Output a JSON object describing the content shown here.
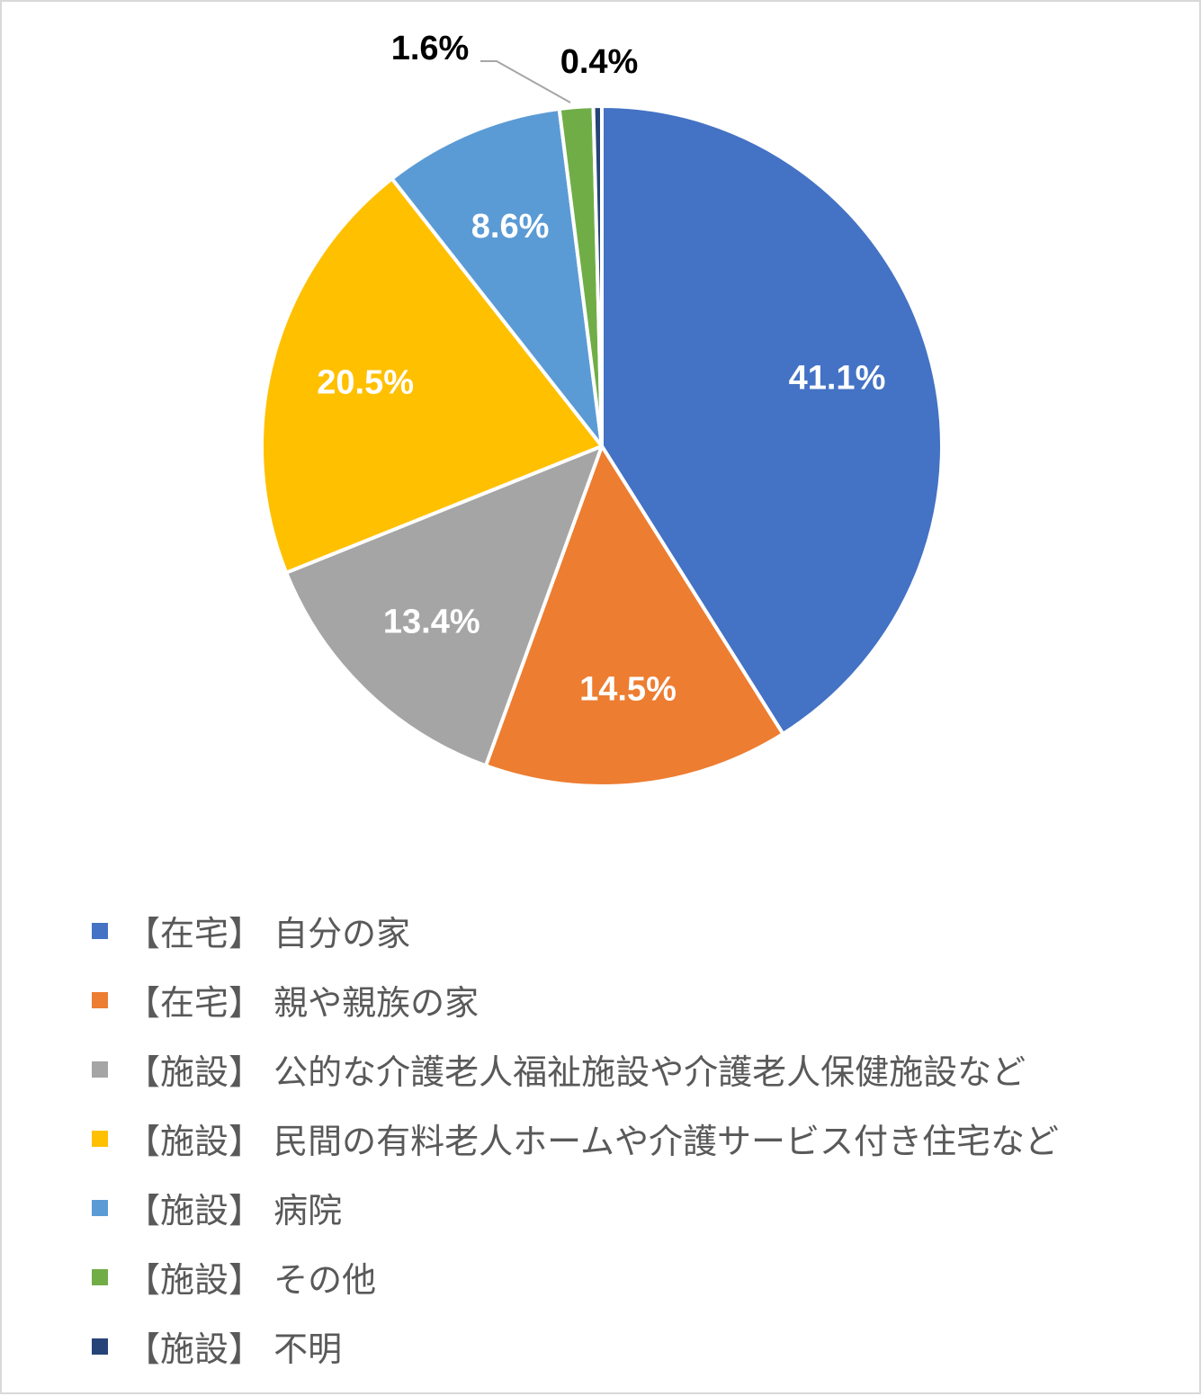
{
  "chart_data": {
    "type": "pie",
    "title": "",
    "legend_position": "bottom",
    "start": "12 o'clock, clockwise",
    "slices": [
      {
        "name": "【在宅】 自分の家",
        "value": 41.1,
        "label": "41.1%",
        "color": "#4472C4",
        "label_color": "#FFFFFF"
      },
      {
        "name": "【在宅】 親や親族の家",
        "value": 14.5,
        "label": "14.5%",
        "color": "#ED7D31",
        "label_color": "#FFFFFF"
      },
      {
        "name": "【施設】 公的な介護老人福祉施設や介護老人保健施設など",
        "value": 13.4,
        "label": "13.4%",
        "color": "#A5A5A5",
        "label_color": "#FFFFFF"
      },
      {
        "name": "【施設】 民間の有料老人ホームや介護サービス付き住宅など",
        "value": 20.5,
        "label": "20.5%",
        "color": "#FFC000",
        "label_color": "#FFFFFF"
      },
      {
        "name": "【施設】 病院",
        "value": 8.6,
        "label": "8.6%",
        "color": "#5B9BD5",
        "label_color": "#FFFFFF"
      },
      {
        "name": "【施設】 その他",
        "value": 1.6,
        "label": "1.6%",
        "color": "#70AD47",
        "label_color": "#000000"
      },
      {
        "name": "【施設】 不明",
        "value": 0.4,
        "label": "0.4%",
        "color": "#264478",
        "label_color": "#000000"
      }
    ]
  }
}
